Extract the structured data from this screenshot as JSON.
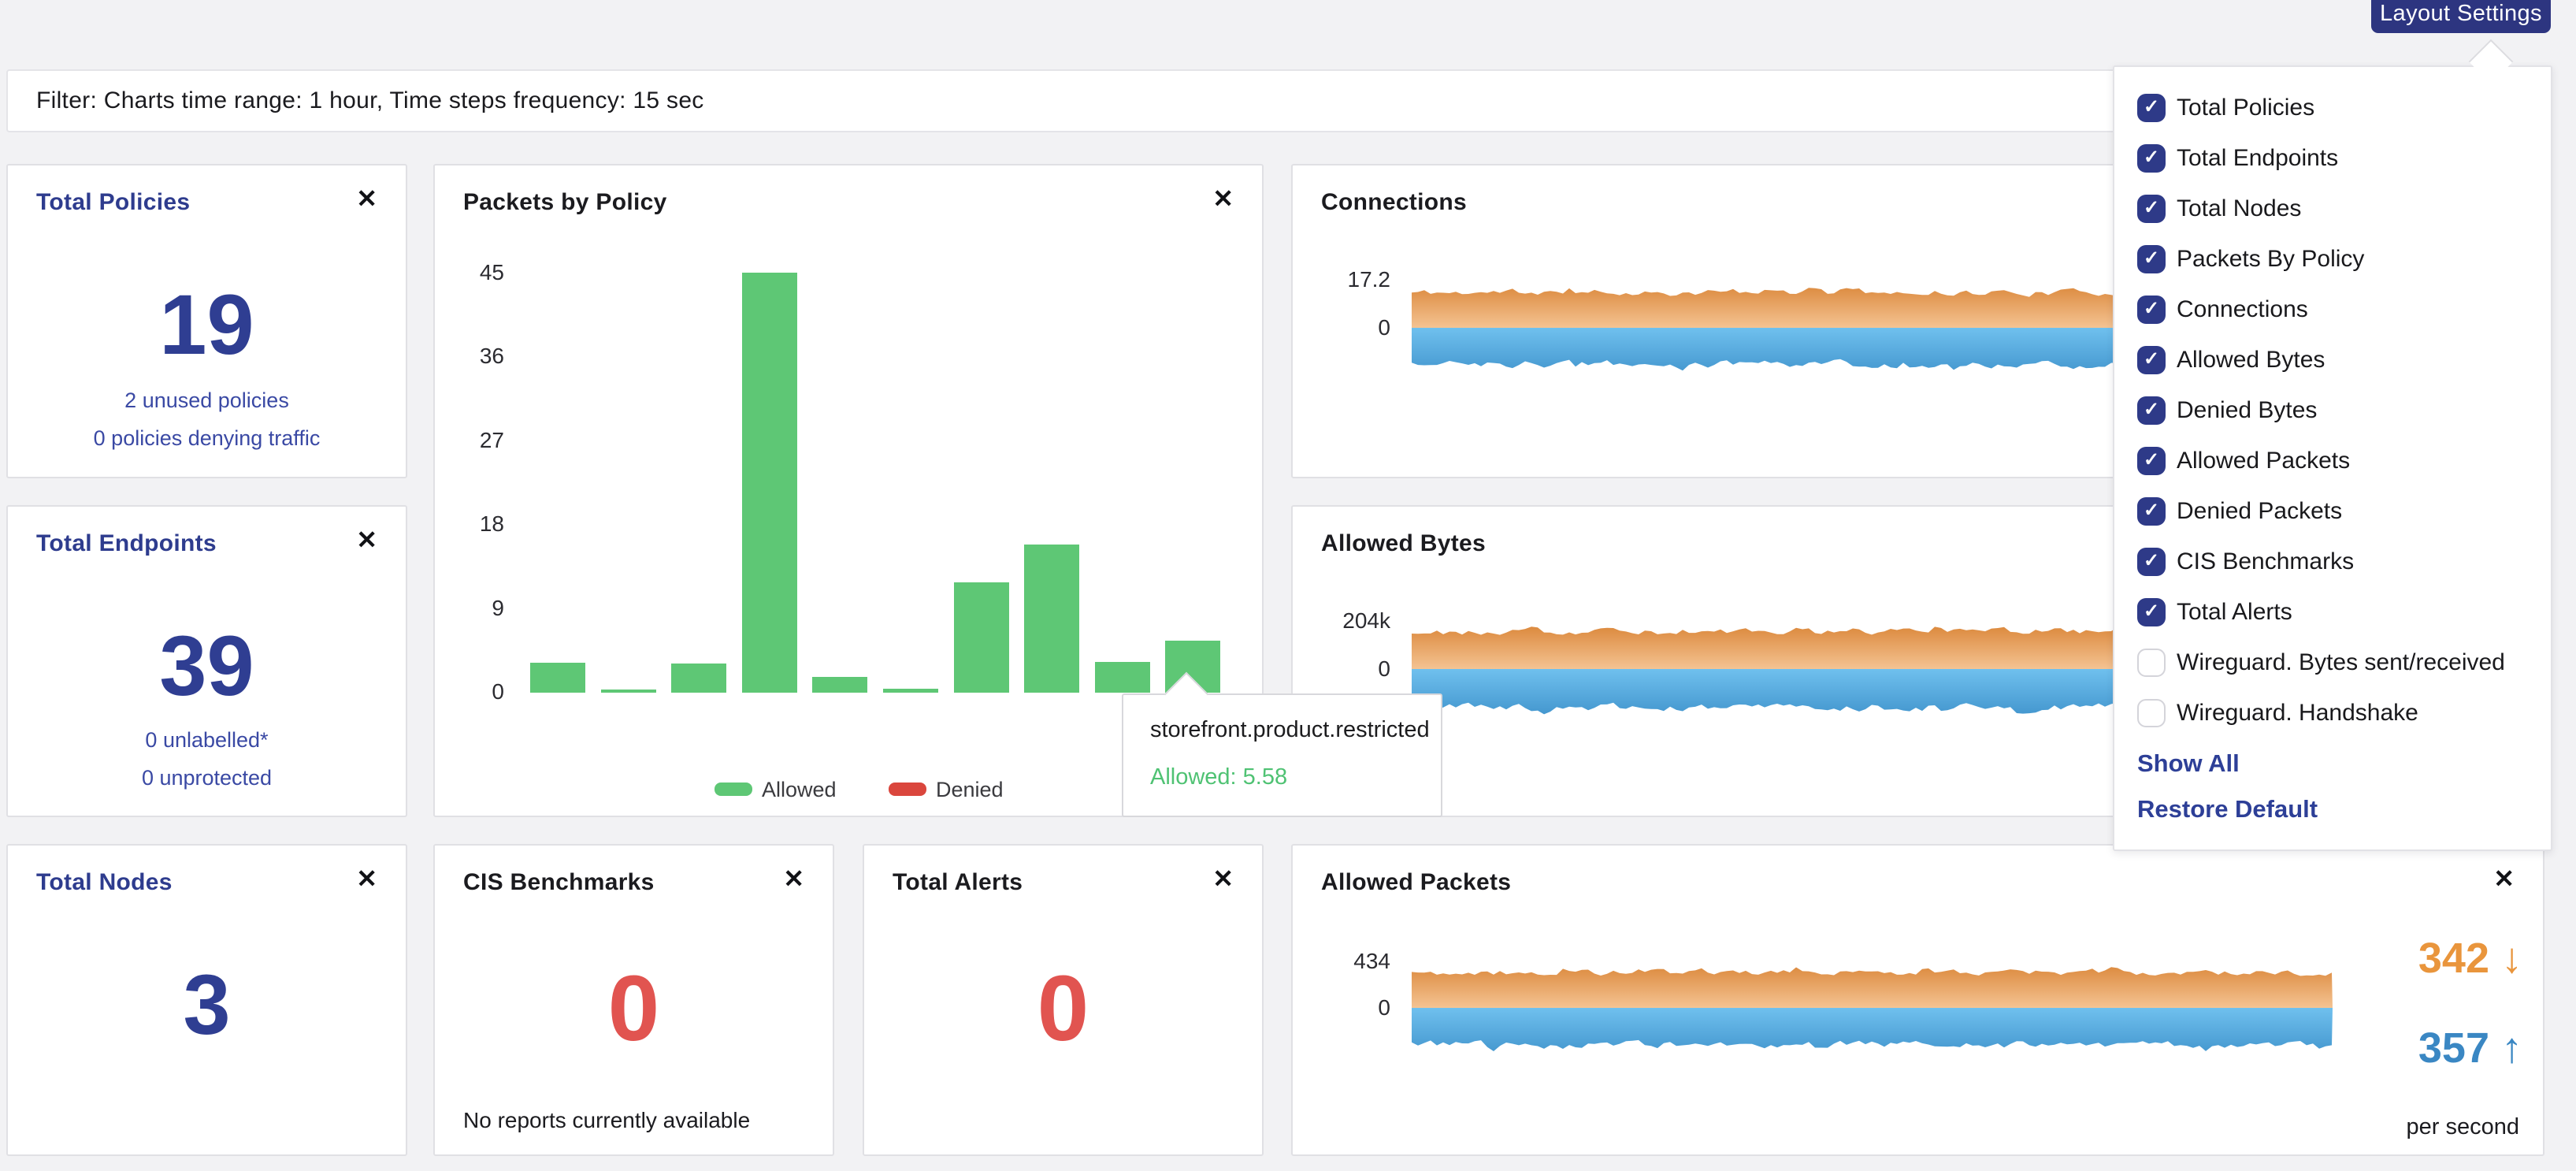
{
  "icons": {
    "close": "✕",
    "check": "✓",
    "arrow_down": "↓",
    "arrow_up": "↑"
  },
  "colors": {
    "brand_blue": "#2d3580",
    "title_blue": "#2e3c8e",
    "number_blue": "#2f3e92",
    "link_blue": "#3a49a4",
    "alert_red": "#e15450",
    "allowed_green": "#5ec775",
    "denied_red": "#da463d",
    "rate_orange": "#e9953c",
    "rate_blue": "#3a87c3"
  },
  "toolbar": {
    "layout_settings_label": "Layout Settings"
  },
  "filter_bar": {
    "text": "Filter: Charts time range: 1 hour, Time steps frequency: 15 sec"
  },
  "layout_menu": {
    "items": [
      {
        "label": "Total Policies",
        "checked": true
      },
      {
        "label": "Total Endpoints",
        "checked": true
      },
      {
        "label": "Total Nodes",
        "checked": true
      },
      {
        "label": "Packets By Policy",
        "checked": true
      },
      {
        "label": "Connections",
        "checked": true
      },
      {
        "label": "Allowed Bytes",
        "checked": true
      },
      {
        "label": "Denied Bytes",
        "checked": true
      },
      {
        "label": "Allowed Packets",
        "checked": true
      },
      {
        "label": "Denied Packets",
        "checked": true
      },
      {
        "label": "CIS Benchmarks",
        "checked": true
      },
      {
        "label": "Total Alerts",
        "checked": true
      },
      {
        "label": "Wireguard. Bytes sent/received",
        "checked": false
      },
      {
        "label": "Wireguard. Handshake",
        "checked": false
      }
    ],
    "show_all_label": "Show All",
    "restore_default_label": "Restore Default"
  },
  "cards": {
    "total_policies": {
      "title": "Total Policies",
      "value": "19",
      "links": [
        "2 unused policies",
        "0 policies denying traffic"
      ]
    },
    "packets_by_policy": {
      "title": "Packets by Policy"
    },
    "connections": {
      "title": "Connections"
    },
    "total_endpoints": {
      "title": "Total Endpoints",
      "value": "39",
      "links": [
        "0 unlabelled*",
        "0 unprotected"
      ]
    },
    "allowed_bytes": {
      "title": "Allowed Bytes"
    },
    "total_nodes": {
      "title": "Total Nodes",
      "value": "3"
    },
    "cis_benchmarks": {
      "title": "CIS Benchmarks",
      "value": "0",
      "note": "No reports currently available"
    },
    "total_alerts": {
      "title": "Total Alerts",
      "value": "0"
    },
    "allowed_packets": {
      "title": "Allowed Packets",
      "down_value": "342",
      "up_value": "357",
      "unit": "per second"
    }
  },
  "tooltip": {
    "title": "storefront.product.restricted",
    "line": "Allowed: 5.58"
  },
  "chart_data": [
    {
      "id": "packets_by_policy",
      "type": "bar",
      "title": "Packets by Policy",
      "y_ticks": [
        45,
        36,
        27,
        18,
        9,
        0
      ],
      "ylim": [
        0,
        45
      ],
      "grid": false,
      "values": [
        3.2,
        0.3,
        3.1,
        45,
        1.7,
        0.4,
        11.8,
        15.9,
        3.3,
        5.58
      ],
      "bar_color": "#5ec775",
      "highlighted_index": 9,
      "highlight_label": "storefront.product.restricted",
      "highlight_value": 5.58,
      "legend": [
        {
          "label": "Allowed",
          "color": "#5ec775"
        },
        {
          "label": "Denied",
          "color": "#da463d"
        }
      ],
      "legend_position": "bottom"
    },
    {
      "id": "connections",
      "type": "area",
      "y_axis_labels": [
        "17.2",
        "0"
      ],
      "y_max": 17.2,
      "upper_series": {
        "name": "above-zero",
        "approx_mean": 12.6,
        "jitter": 2.1,
        "color_top": "#d77e2d",
        "color_bottom": "#f4c392"
      },
      "lower_series": {
        "name": "below-zero",
        "approx_mean": -13.0,
        "jitter": 2.4,
        "color_top": "#6fc0ee",
        "color_bottom": "#3f92cb"
      }
    },
    {
      "id": "allowed_bytes",
      "type": "area",
      "y_axis_labels": [
        "204k",
        "0"
      ],
      "y_max": 204000,
      "upper_series": {
        "name": "above-zero",
        "approx_mean": 158000,
        "jitter": 26000,
        "color_top": "#d77e2d",
        "color_bottom": "#f4c392"
      },
      "lower_series": {
        "name": "below-zero",
        "approx_mean": -162000,
        "jitter": 30000,
        "color_top": "#6fc0ee",
        "color_bottom": "#3f92cb"
      }
    },
    {
      "id": "allowed_packets",
      "type": "area",
      "y_axis_labels": [
        "434",
        "0"
      ],
      "y_max": 434,
      "upper_series": {
        "name": "above-zero",
        "approx_mean": 318,
        "jitter": 48,
        "color_top": "#d77e2d",
        "color_bottom": "#f4c392"
      },
      "lower_series": {
        "name": "below-zero",
        "approx_mean": -330,
        "jitter": 58,
        "color_top": "#6fc0ee",
        "color_bottom": "#3f92cb"
      }
    }
  ]
}
